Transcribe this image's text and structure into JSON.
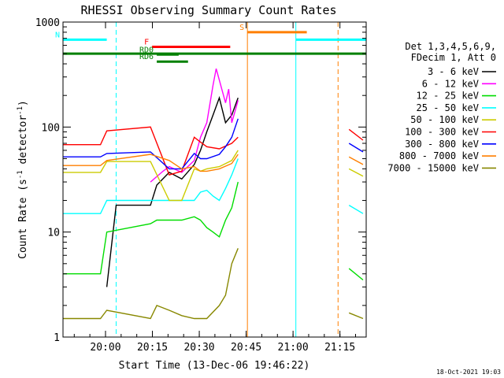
{
  "chart_data": {
    "type": "line",
    "title": "RHESSI Observing Summary Count Rates",
    "xlabel": "Start Time (13-Dec-06 19:46:22)",
    "ylabel_main": "Count Rate (s",
    "ylabel_sup1": "-1",
    "ylabel_mid": " detector",
    "ylabel_sup2": "-1",
    "ylabel_end": ")",
    "x_scale": "time (minutes after 19:46:22 UTC, 13-Dec-2006)",
    "xlim": [
      0,
      97
    ],
    "y_scale": "log",
    "ylim": [
      1,
      1000
    ],
    "grid": false,
    "x_ticks": [
      {
        "label": "20:00",
        "minute": 13.6
      },
      {
        "label": "20:15",
        "minute": 28.6
      },
      {
        "label": "20:30",
        "minute": 43.6
      },
      {
        "label": "20:45",
        "minute": 58.6
      },
      {
        "label": "21:00",
        "minute": 73.6
      },
      {
        "label": "21:15",
        "minute": 88.6
      }
    ],
    "y_ticks": [
      {
        "label": "1",
        "value": 1
      },
      {
        "label": "10",
        "value": 10
      },
      {
        "label": "100",
        "value": 100
      },
      {
        "label": "1000",
        "value": 1000
      }
    ],
    "legend_header": [
      "Det 1,3,4,5,6,9,",
      "FDecim 1, Att 0"
    ],
    "legend_placement": "right",
    "series": [
      {
        "name": "3 - 6 keV",
        "color": "#000000",
        "x": [
          0,
          14,
          17,
          28,
          30,
          34,
          38,
          42,
          44,
          46,
          48,
          50,
          52,
          54,
          56
        ],
        "y": [
          null,
          3,
          18,
          18,
          28,
          37,
          32,
          44,
          60,
          90,
          130,
          190,
          110,
          130,
          190
        ]
      },
      {
        "name": "6 - 12 keV",
        "color": "#ff00ff",
        "x": [
          0,
          28,
          32,
          34,
          38,
          42,
          44,
          46,
          48,
          49,
          50,
          52,
          53,
          54,
          55,
          56
        ],
        "y": [
          null,
          30,
          38,
          42,
          37,
          48,
          80,
          110,
          250,
          360,
          280,
          170,
          230,
          110,
          140,
          180
        ]
      },
      {
        "name": "12 - 25 keV",
        "color": "#00dd00",
        "x": [
          0,
          12,
          14,
          28,
          30,
          38,
          42,
          44,
          46,
          48,
          50,
          52,
          54,
          56
        ],
        "y": [
          4,
          4,
          10,
          12,
          13,
          13,
          14,
          13,
          11,
          10,
          9,
          13,
          17,
          30
        ]
      },
      {
        "name": "25 - 50 keV",
        "color": "#00ffff",
        "x": [
          0,
          12,
          14,
          28,
          34,
          38,
          42,
          44,
          46,
          48,
          50,
          52,
          54,
          56
        ],
        "y": [
          15,
          15,
          20,
          20,
          20,
          20,
          20,
          24,
          25,
          22,
          20,
          26,
          35,
          50
        ]
      },
      {
        "name": "50 - 100 keV",
        "color": "#cccc00",
        "x": [
          0,
          12,
          14,
          28,
          34,
          38,
          42,
          44,
          46,
          50,
          54,
          56
        ],
        "y": [
          37,
          37,
          47,
          47,
          20,
          20,
          40,
          38,
          40,
          42,
          48,
          60
        ]
      },
      {
        "name": "100 - 300 keV",
        "color": "#ff0000",
        "x": [
          0,
          12,
          14,
          28,
          34,
          38,
          42,
          44,
          46,
          50,
          54,
          56
        ],
        "y": [
          68,
          68,
          92,
          100,
          35,
          38,
          80,
          72,
          65,
          62,
          70,
          80
        ]
      },
      {
        "name": "300 - 800 keV",
        "color": "#0000ff",
        "x": [
          0,
          12,
          14,
          28,
          34,
          38,
          42,
          44,
          46,
          50,
          52,
          54,
          56
        ],
        "y": [
          52,
          52,
          56,
          58,
          40,
          40,
          56,
          50,
          50,
          55,
          65,
          80,
          120
        ]
      },
      {
        "name": "800 - 7000 keV",
        "color": "#ff7f00",
        "x": [
          0,
          12,
          14,
          28,
          34,
          38,
          42,
          44,
          46,
          50,
          54,
          56
        ],
        "y": [
          43,
          43,
          48,
          55,
          48,
          40,
          42,
          38,
          38,
          40,
          45,
          55
        ]
      },
      {
        "name": "7000 - 15000 keV",
        "color": "#888800",
        "x": [
          0,
          12,
          14,
          28,
          30,
          34,
          38,
          42,
          46,
          50,
          52,
          54,
          56
        ],
        "y": [
          1.5,
          1.5,
          1.8,
          1.5,
          2,
          1.8,
          1.6,
          1.5,
          1.5,
          2,
          2.5,
          5,
          7
        ]
      }
    ],
    "right_segment": {
      "x_start": 91.5,
      "x_end": 96,
      "values": [
        {
          "name": "3 - 6 keV",
          "y_start": null,
          "y_end": null
        },
        {
          "name": "6 - 12 keV",
          "y_start": null,
          "y_end": null
        },
        {
          "name": "12 - 25 keV",
          "y_start": 4.5,
          "y_end": 3.5
        },
        {
          "name": "25 - 50 keV",
          "y_start": 18,
          "y_end": 15
        },
        {
          "name": "50 - 100 keV",
          "y_start": 40,
          "y_end": 34
        },
        {
          "name": "100 - 300 keV",
          "y_start": 95,
          "y_end": 75
        },
        {
          "name": "300 - 800 keV",
          "y_start": 70,
          "y_end": 58
        },
        {
          "name": "800 - 7000 keV",
          "y_start": 52,
          "y_end": 44
        },
        {
          "name": "7000 - 15000 keV",
          "y_start": 1.7,
          "y_end": 1.5
        }
      ]
    },
    "flag_bars": [
      {
        "label": "N",
        "color": "#00ffff",
        "x_start": 0,
        "x_end": 14,
        "level": 680
      },
      {
        "label": "",
        "color": "#00ffff",
        "x_start": 74.5,
        "x_end": 97,
        "level": 680
      },
      {
        "label": "S",
        "color": "#ff7f00",
        "x_start": 59,
        "x_end": 78,
        "level": 800
      },
      {
        "label": "F",
        "color": "#ff0000",
        "x_start": 28.5,
        "x_end": 53.5,
        "level": 580
      },
      {
        "label": "RD0",
        "color": "#008000",
        "x_start": 30,
        "x_end": 37,
        "level": 490
      },
      {
        "label": "RD6",
        "color": "#008000",
        "x_start": 30,
        "x_end": 40,
        "level": 420
      },
      {
        "label": "",
        "color": "#008000",
        "x_start": 0,
        "x_end": 97,
        "level": 500
      }
    ],
    "vertical_markers": [
      {
        "color": "#00ffff",
        "style": "dashed",
        "minute": 17
      },
      {
        "color": "#00ffff",
        "style": "solid",
        "minute": 74.5
      },
      {
        "color": "#00ffff",
        "style": "dashed",
        "minute": 97
      },
      {
        "color": "#ff7f00",
        "style": "solid",
        "minute": 59
      },
      {
        "color": "#ff7f00",
        "style": "dashed",
        "minute": 88
      }
    ]
  },
  "footer_timestamp": "18-Oct-2021 19:03"
}
